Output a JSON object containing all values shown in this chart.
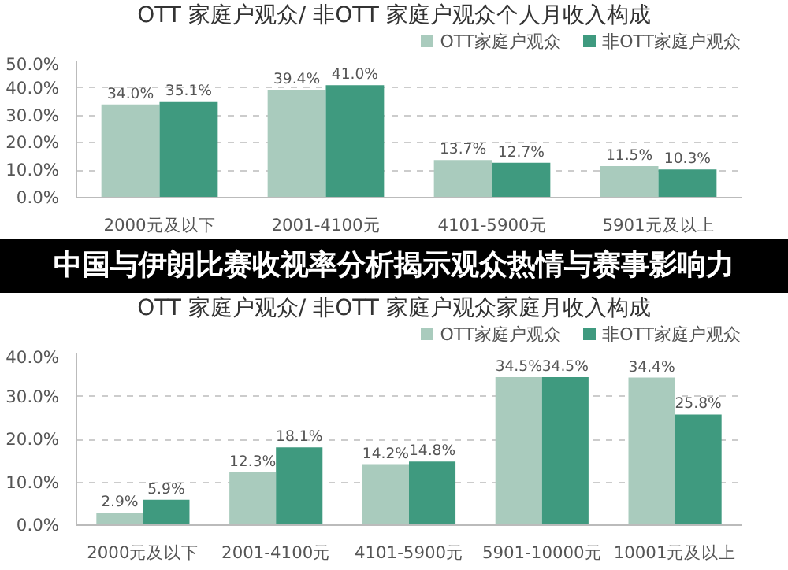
{
  "chart_data": [
    {
      "type": "bar",
      "title": "OTT 家庭户观众/ 非OTT 家庭户观众个人月收入构成",
      "categories": [
        "2000元及以下",
        "2001-4100元",
        "4101-5900元",
        "5901元及以上"
      ],
      "series": [
        {
          "name": "OTT家庭户观众",
          "color": "#a9cbbd",
          "values": [
            34.0,
            39.4,
            13.7,
            11.5
          ],
          "value_labels": [
            "34.0%",
            "39.4%",
            "13.7%",
            "11.5%"
          ]
        },
        {
          "name": "非OTT家庭户观众",
          "color": "#3f9a7f",
          "values": [
            35.1,
            41.0,
            12.7,
            10.3
          ],
          "value_labels": [
            "35.1%",
            "41.0%",
            "12.7%",
            "10.3%"
          ]
        }
      ],
      "ylim": [
        0,
        50
      ],
      "yticks": [
        {
          "value": 0,
          "label": "0.0%"
        },
        {
          "value": 10,
          "label": "10.0%"
        },
        {
          "value": 20,
          "label": "20.0%"
        },
        {
          "value": 30,
          "label": "30.0%"
        },
        {
          "value": 40,
          "label": "40.0%"
        },
        {
          "value": 50,
          "label": "50.0%"
        }
      ],
      "grid": "y",
      "legend": "top right",
      "annotations": [
        "中国与伊朗比赛收视率分析揭示观众热情与赛事影响力"
      ]
    },
    {
      "type": "bar",
      "title": "OTT 家庭户观众/ 非OTT 家庭户观众家庭月收入构成",
      "categories": [
        "2000元及以下",
        "2001-4100元",
        "4101-5900元",
        "5901-10000元",
        "10001元及以上"
      ],
      "series": [
        {
          "name": "OTT家庭户观众",
          "color": "#a9cbbd",
          "values": [
            2.9,
            12.3,
            14.2,
            34.5,
            34.4
          ],
          "value_labels": [
            "2.9%",
            "12.3%",
            "14.2%",
            "34.5%",
            "34.4%"
          ]
        },
        {
          "name": "非OTT家庭户观众",
          "color": "#3f9a7f",
          "values": [
            5.9,
            18.1,
            14.8,
            34.5,
            25.8
          ],
          "value_labels": [
            "5.9%",
            "18.1%",
            "14.8%",
            "34.5%",
            "25.8%"
          ]
        }
      ],
      "ylim": [
        0,
        40
      ],
      "yticks": [
        {
          "value": 0,
          "label": "0.0%"
        },
        {
          "value": 10,
          "label": "10.0%"
        },
        {
          "value": 20,
          "label": "20.0%"
        },
        {
          "value": 30,
          "label": "30.0%"
        },
        {
          "value": 40,
          "label": "40.0%"
        }
      ],
      "grid": "y",
      "legend": "top right"
    }
  ]
}
